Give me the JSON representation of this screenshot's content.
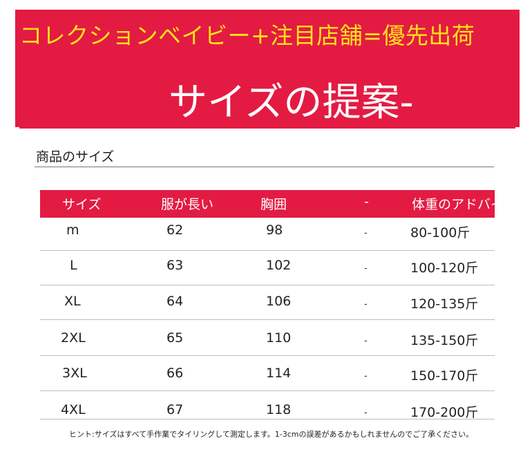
{
  "banner": {
    "promo": "コレクションベイビー+注目店舗=優先出荷",
    "title": "サイズの提案-"
  },
  "section_title": "商品のサイズ",
  "table": {
    "headers": [
      "サイズ",
      "服が長い",
      "胸囲",
      "-",
      "体重のアドバイス"
    ],
    "rows": [
      {
        "size": "m",
        "length": "62",
        "chest": "98",
        "dash": "-",
        "weight": "80-100斤"
      },
      {
        "size": "L",
        "length": "63",
        "chest": "102",
        "dash": "-",
        "weight": "100-120斤"
      },
      {
        "size": "XL",
        "length": "64",
        "chest": "106",
        "dash": "-",
        "weight": "120-135斤"
      },
      {
        "size": "2XL",
        "length": "65",
        "chest": "110",
        "dash": "-",
        "weight": "135-150斤"
      },
      {
        "size": "3XL",
        "length": "66",
        "chest": "114",
        "dash": "-",
        "weight": "150-170斤"
      },
      {
        "size": "4XL",
        "length": "67",
        "chest": "118",
        "dash": "-",
        "weight": "170-200斤"
      }
    ]
  },
  "note": "ヒント:サイズはすべて手作業でタイリングして測定します。1-3cmの誤差があるかもしれませんのでご了承ください。",
  "colors": {
    "accent": "#e31b43",
    "promo_text": "#ffe21a"
  }
}
